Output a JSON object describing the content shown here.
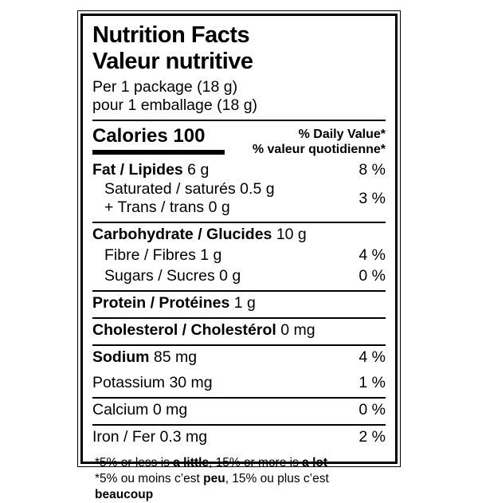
{
  "colors": {
    "text": "#000000",
    "background": "#ffffff",
    "border": "#000000"
  },
  "header": {
    "title_en": "Nutrition Facts",
    "title_fr": "Valeur nutritive",
    "serving_en": "Per 1 package (18 g)",
    "serving_fr": "pour 1 emballage (18 g)"
  },
  "calories": {
    "label": "Calories 100",
    "dv_header_en": "% Daily Value*",
    "dv_header_fr": "% valeur quotidienne*"
  },
  "nutrients": {
    "fat": {
      "name": "Fat / Lipides",
      "amount": " 6 g",
      "percent": "8 %"
    },
    "saturated": {
      "line1": "Saturated / saturés 0.5 g",
      "line2": "+ Trans / trans 0 g",
      "percent": "3 %"
    },
    "carbohydrate": {
      "name": "Carbohydrate / Glucides",
      "amount": " 10 g"
    },
    "fibre": {
      "name": "Fibre / Fibres 1 g",
      "percent": "4 %"
    },
    "sugars": {
      "name": "Sugars / Sucres 0 g",
      "percent": "0 %"
    },
    "protein": {
      "name": "Protein / Protéines",
      "amount": " 1 g"
    },
    "cholesterol": {
      "name": "Cholesterol / Cholestérol",
      "amount": " 0 mg"
    },
    "sodium": {
      "name": "Sodium",
      "amount": " 85 mg",
      "percent": "4 %"
    },
    "potassium": {
      "name": "Potassium 30 mg",
      "percent": "1 %"
    },
    "calcium": {
      "name": "Calcium 0 mg",
      "percent": "0 %"
    },
    "iron": {
      "name": "Iron / Fer 0.3 mg",
      "percent": "2 %"
    }
  },
  "footnotes": {
    "en": {
      "pre": "*5% or less is ",
      "bold1": "a little",
      "mid": ", 15% or more is ",
      "bold2": "a lot"
    },
    "fr": {
      "pre": "*5% ou moins c’est ",
      "bold1": "peu",
      "mid": ", 15% ou plus c’est ",
      "bold2": "beaucoup"
    }
  }
}
